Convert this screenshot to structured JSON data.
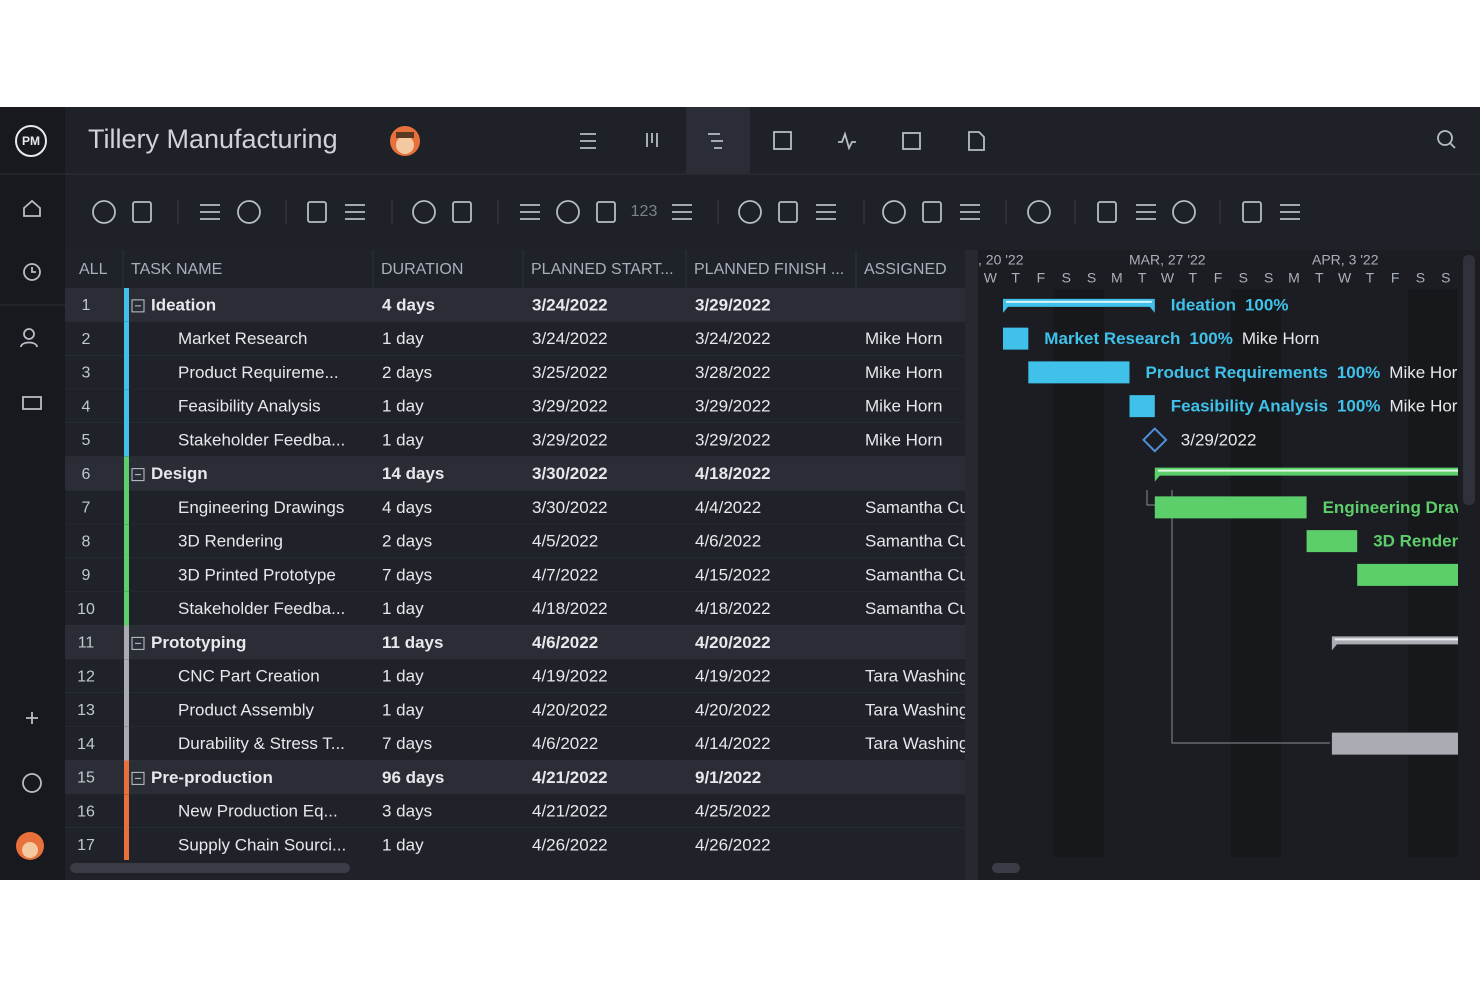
{
  "header": {
    "logo": "PM",
    "title": "Tillery Manufacturing"
  },
  "toolbar": {
    "number_format": "123"
  },
  "table": {
    "columns": [
      "ALL",
      "TASK NAME",
      "DURATION",
      "PLANNED START...",
      "PLANNED FINISH ...",
      "ASSIGNED"
    ],
    "rows": [
      {
        "num": "1",
        "name": "Ideation",
        "duration": "4 days",
        "start": "3/24/2022",
        "finish": "3/29/2022",
        "summary": true,
        "color": "#3fc1e9",
        "bar_label": [
          "Ideation",
          "100%"
        ]
      },
      {
        "num": "2",
        "name": "Market Research",
        "duration": "1 day",
        "start": "3/24/2022",
        "finish": "3/24/2022",
        "assigned": "Mike Horn",
        "color": "#3fc1e9",
        "bar_label": [
          "Market Research",
          "100%",
          "Mike Horn"
        ]
      },
      {
        "num": "3",
        "name": "Product Requireme...",
        "duration": "2 days",
        "start": "3/25/2022",
        "finish": "3/28/2022",
        "assigned": "Mike Horn",
        "color": "#3fc1e9",
        "bar_label": [
          "Product Requirements",
          "100%",
          "Mike Horr"
        ]
      },
      {
        "num": "4",
        "name": "Feasibility Analysis",
        "duration": "1 day",
        "start": "3/29/2022",
        "finish": "3/29/2022",
        "assigned": "Mike Horn",
        "color": "#3fc1e9",
        "bar_label": [
          "Feasibility Analysis",
          "100%",
          "Mike Horr"
        ]
      },
      {
        "num": "5",
        "name": "Stakeholder Feedba...",
        "duration": "1 day",
        "start": "3/29/2022",
        "finish": "3/29/2022",
        "assigned": "Mike Horn",
        "color": "#3fc1e9",
        "milestone": true,
        "bar_label": [
          "3/29/2022"
        ]
      },
      {
        "num": "6",
        "name": "Design",
        "duration": "14 days",
        "start": "3/30/2022",
        "finish": "4/18/2022",
        "summary": true,
        "color": "#5ccf6a"
      },
      {
        "num": "7",
        "name": "Engineering Drawings",
        "duration": "4 days",
        "start": "3/30/2022",
        "finish": "4/4/2022",
        "assigned": "Samantha Cu",
        "color": "#5ccf6a",
        "bar_label": [
          "Engineering Drav"
        ]
      },
      {
        "num": "8",
        "name": "3D Rendering",
        "duration": "2 days",
        "start": "4/5/2022",
        "finish": "4/6/2022",
        "assigned": "Samantha Cu",
        "color": "#5ccf6a",
        "bar_label": [
          "3D Render"
        ]
      },
      {
        "num": "9",
        "name": "3D Printed Prototype",
        "duration": "7 days",
        "start": "4/7/2022",
        "finish": "4/15/2022",
        "assigned": "Samantha Cu",
        "color": "#5ccf6a"
      },
      {
        "num": "10",
        "name": "Stakeholder Feedba...",
        "duration": "1 day",
        "start": "4/18/2022",
        "finish": "4/18/2022",
        "assigned": "Samantha Cu",
        "color": "#5ccf6a"
      },
      {
        "num": "11",
        "name": "Prototyping",
        "duration": "11 days",
        "start": "4/6/2022",
        "finish": "4/20/2022",
        "summary": true,
        "color": "#a9adb3"
      },
      {
        "num": "12",
        "name": "CNC Part Creation",
        "duration": "1 day",
        "start": "4/19/2022",
        "finish": "4/19/2022",
        "assigned": "Tara Washing",
        "color": "#a9adb3"
      },
      {
        "num": "13",
        "name": "Product Assembly",
        "duration": "1 day",
        "start": "4/20/2022",
        "finish": "4/20/2022",
        "assigned": "Tara Washing",
        "color": "#a9adb3"
      },
      {
        "num": "14",
        "name": "Durability & Stress T...",
        "duration": "7 days",
        "start": "4/6/2022",
        "finish": "4/14/2022",
        "assigned": "Tara Washing",
        "color": "#a9adb3"
      },
      {
        "num": "15",
        "name": "Pre-production",
        "duration": "96 days",
        "start": "4/21/2022",
        "finish": "9/1/2022",
        "summary": true,
        "color": "#e8703a"
      },
      {
        "num": "16",
        "name": "New Production Eq...",
        "duration": "3 days",
        "start": "4/21/2022",
        "finish": "4/25/2022",
        "color": "#e8703a"
      },
      {
        "num": "17",
        "name": "Supply Chain Sourci...",
        "duration": "1 day",
        "start": "4/26/2022",
        "finish": "4/26/2022",
        "color": "#e8703a"
      }
    ]
  },
  "gantt": {
    "weeks": [
      ", 20 '22",
      "MAR, 27 '22",
      "APR, 3 '22"
    ],
    "days": [
      "W",
      "T",
      "F",
      "S",
      "S",
      "M",
      "T",
      "W",
      "T",
      "F",
      "S",
      "S",
      "M",
      "T",
      "W",
      "T",
      "F",
      "S",
      "S"
    ]
  }
}
